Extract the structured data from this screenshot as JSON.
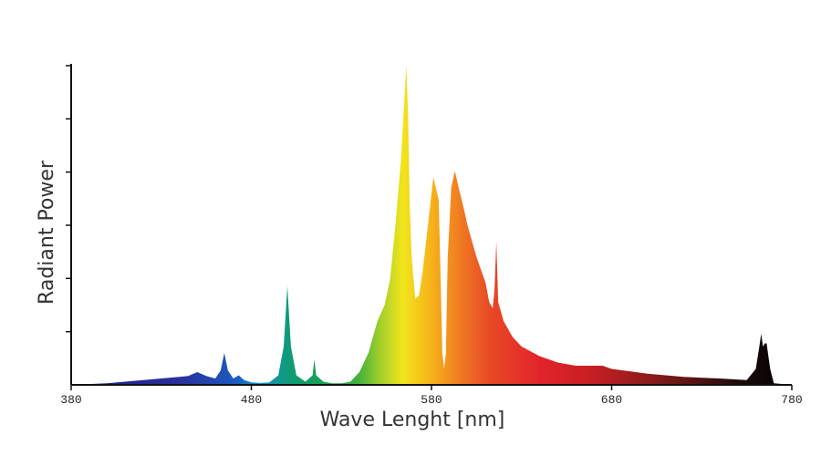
{
  "chart_data": {
    "type": "area",
    "title": "",
    "xlabel": "Wave Lenght [nm]",
    "ylabel": "Radiant Power",
    "xlim": [
      380,
      780
    ],
    "ylim": [
      0,
      1
    ],
    "x_ticks": [
      380,
      480,
      580,
      680,
      780
    ],
    "y_tick_count": 6,
    "grid": false,
    "fill": "spectral gradient: violet/blue to green, yellow, orange, red, black",
    "series": [
      {
        "values_note": "relative radiant power, peak normalized to 1",
        "x": [
          380,
          400,
          410,
          420,
          430,
          440,
          445,
          450,
          455,
          460,
          463,
          465,
          467,
          470,
          473,
          476,
          480,
          485,
          490,
          495,
          498,
          500,
          502,
          505,
          510,
          514,
          515,
          516,
          520,
          525,
          530,
          535,
          540,
          545,
          548,
          550,
          554,
          557,
          560,
          563,
          566,
          567,
          568,
          569,
          571,
          573,
          575,
          578,
          581,
          584,
          585,
          586,
          587,
          588,
          589,
          591,
          593,
          595,
          598,
          600,
          605,
          610,
          612,
          614,
          615,
          616,
          617,
          620,
          625,
          630,
          640,
          650,
          660,
          670,
          675,
          680,
          700,
          720,
          740,
          755,
          760,
          762,
          763,
          764,
          765,
          766,
          767,
          768,
          770,
          780
        ],
        "y": [
          0.0,
          0.005,
          0.01,
          0.015,
          0.02,
          0.025,
          0.028,
          0.04,
          0.028,
          0.02,
          0.045,
          0.1,
          0.045,
          0.02,
          0.03,
          0.015,
          0.008,
          0.006,
          0.008,
          0.03,
          0.12,
          0.31,
          0.12,
          0.03,
          0.01,
          0.03,
          0.08,
          0.03,
          0.01,
          0.005,
          0.005,
          0.01,
          0.04,
          0.1,
          0.16,
          0.2,
          0.25,
          0.33,
          0.5,
          0.7,
          1.0,
          0.85,
          0.55,
          0.4,
          0.27,
          0.28,
          0.35,
          0.5,
          0.65,
          0.58,
          0.35,
          0.1,
          0.05,
          0.1,
          0.4,
          0.62,
          0.67,
          0.62,
          0.55,
          0.5,
          0.4,
          0.32,
          0.26,
          0.24,
          0.3,
          0.45,
          0.26,
          0.2,
          0.15,
          0.12,
          0.09,
          0.07,
          0.06,
          0.06,
          0.06,
          0.05,
          0.035,
          0.025,
          0.02,
          0.015,
          0.05,
          0.12,
          0.16,
          0.12,
          0.13,
          0.13,
          0.09,
          0.05,
          0.005,
          0.0
        ]
      }
    ]
  }
}
